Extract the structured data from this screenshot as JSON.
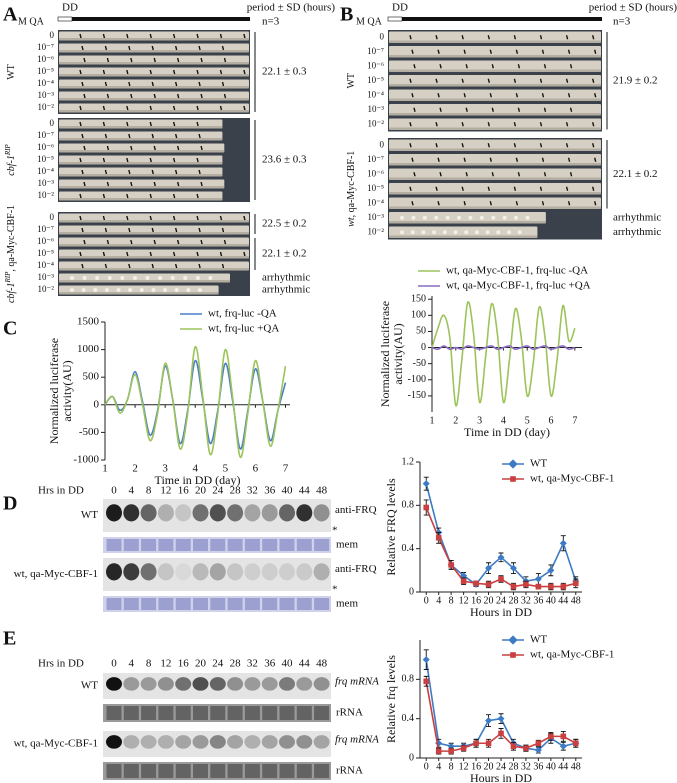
{
  "panel_a": {
    "label": "A",
    "header": {
      "mq": "M QA",
      "dd": "DD",
      "period": "period ± SD (hours)",
      "n": "n=3"
    },
    "groups": [
      {
        "strain": {
          "text": "WT"
        },
        "rows": [
          "0",
          "10⁻⁷",
          "10⁻⁶",
          "10⁻⁵",
          "10⁻⁴",
          "10⁻³",
          "10⁻²"
        ],
        "periods": [
          "22.1 ± 0.3"
        ]
      },
      {
        "strain": {
          "text": "cbf-1",
          "sup": "RIP"
        },
        "rows": [
          "0",
          "10⁻⁷",
          "10⁻⁶",
          "10⁻⁵",
          "10⁻⁴",
          "10⁻³",
          "10⁻²"
        ],
        "periods": [
          "23.6 ± 0.3"
        ]
      },
      {
        "strain": {
          "text": "cbf-1",
          "sup": "RIP",
          "rest": ", qa-Myc-CBF-1"
        },
        "rows": [
          "0",
          "10⁻⁷",
          "10⁻⁶",
          "10⁻⁵",
          "10⁻⁴",
          "10⁻³",
          "10⁻²"
        ],
        "periods": [
          "22.5 ± 0.2",
          "22.1 ± 0.2",
          "arrhythmic",
          "arrhythmic"
        ]
      }
    ]
  },
  "panel_b": {
    "label": "B",
    "header": {
      "mq": "M QA",
      "dd": "DD",
      "period": "period ± SD (hours)",
      "n": "n=3"
    },
    "groups": [
      {
        "strain": {
          "text": "WT"
        },
        "rows": [
          "0",
          "10⁻⁷",
          "10⁻⁶",
          "10⁻⁵",
          "10⁻⁴",
          "10⁻³",
          "10⁻²"
        ],
        "periods": [
          "21.9 ± 0.2"
        ]
      },
      {
        "strain": {
          "text": "wt",
          "rest": ", qa-Myc-CBF-1"
        },
        "rows": [
          "0",
          "10⁻⁷",
          "10⁻⁶",
          "10⁻⁵",
          "10⁻⁴",
          "10⁻³",
          "10⁻²"
        ],
        "periods": [
          "22.1 ± 0.2",
          "arrhythmic",
          "arrhythmic"
        ]
      }
    ]
  },
  "panel_c": {
    "label": "C"
  },
  "panel_d": {
    "label": "D",
    "hrs": "Hrs in DD",
    "times": [
      0,
      4,
      8,
      12,
      16,
      20,
      24,
      28,
      32,
      36,
      40,
      44,
      48
    ],
    "blots": [
      {
        "strain": "WT",
        "band": "anti-FRQ",
        "star": "*",
        "mem": "mem"
      },
      {
        "strain": "wt, qa-Myc-CBF-1",
        "band": "anti-FRQ",
        "star": "*",
        "mem": "mem"
      }
    ]
  },
  "panel_e": {
    "label": "E",
    "hrs": "Hrs in DD",
    "times": [
      0,
      4,
      8,
      12,
      16,
      20,
      24,
      28,
      32,
      36,
      40,
      44,
      48
    ],
    "blots": [
      {
        "strain": "WT",
        "band": "frq mRNA",
        "mem": "rRNA"
      },
      {
        "strain": "wt, qa-Myc-CBF-1",
        "band": "frq mRNA",
        "mem": "rRNA"
      }
    ]
  },
  "chart_data": [
    {
      "type": "line",
      "xlabel": "Time in DD (day)",
      "ylabel": [
        "Normalized luciferase",
        "activity(AU)"
      ],
      "x": [
        1,
        1.25,
        1.5,
        1.75,
        2,
        2.25,
        2.5,
        2.75,
        3,
        3.25,
        3.5,
        3.75,
        4,
        4.25,
        4.5,
        4.75,
        5,
        5.25,
        5.5,
        5.75,
        6,
        6.25,
        6.5,
        6.75,
        7
      ],
      "xlim": [
        1,
        7.15
      ],
      "xticks": [
        1,
        2,
        3,
        4,
        5,
        6,
        7
      ],
      "ylim": [
        -1000,
        1500
      ],
      "yticks": [
        -1000,
        -500,
        0,
        500,
        1000,
        1500
      ],
      "series": [
        {
          "name": "wt, frq-luc -QA",
          "color": "#4a7ec9",
          "values": [
            0,
            150,
            -100,
            100,
            600,
            50,
            -550,
            -100,
            700,
            100,
            -700,
            -100,
            800,
            100,
            -700,
            -100,
            750,
            50,
            -800,
            -100,
            650,
            50,
            -650,
            -100,
            400
          ]
        },
        {
          "name": "wt, frq-luc +QA",
          "color": "#9cc45a",
          "values": [
            0,
            150,
            -150,
            100,
            550,
            0,
            -650,
            -150,
            750,
            100,
            -800,
            -150,
            1050,
            150,
            -900,
            -150,
            1000,
            100,
            -950,
            -150,
            800,
            50,
            -750,
            -100,
            700
          ]
        }
      ]
    },
    {
      "type": "line",
      "xlabel": "Time in DD (day)",
      "ylabel": [
        "Normalized luciferase",
        "activity(AU)"
      ],
      "x": [
        1,
        1.25,
        1.5,
        1.75,
        2,
        2.25,
        2.5,
        2.75,
        3,
        3.25,
        3.5,
        3.75,
        4,
        4.25,
        4.5,
        4.75,
        5,
        5.25,
        5.5,
        5.75,
        6,
        6.25,
        6.5,
        6.75,
        7
      ],
      "xlim": [
        1,
        7.3
      ],
      "xticks": [
        1,
        2,
        3,
        4,
        5,
        6,
        7
      ],
      "ylim": [
        -200,
        160
      ],
      "yticks": [
        -150,
        -100,
        -50,
        0,
        50,
        100,
        150
      ],
      "series": [
        {
          "name": "wt, qa-Myc-CBF-1, frq-luc -QA",
          "color": "#9cc45a",
          "values": [
            0,
            60,
            100,
            30,
            -180,
            -40,
            140,
            40,
            -170,
            -30,
            135,
            40,
            -170,
            -40,
            120,
            30,
            -150,
            -50,
            125,
            30,
            -150,
            -40,
            130,
            20,
            60
          ]
        },
        {
          "name": "wt, qa-Myc-CBF-1, frq-luc +QA",
          "color": "#8a6cc0",
          "values": [
            0,
            -5,
            5,
            -5,
            0,
            -5,
            5,
            0,
            -5,
            0,
            5,
            -5,
            0,
            5,
            -5,
            0,
            5,
            -5,
            0,
            5,
            -5,
            0,
            5,
            -5,
            0
          ]
        }
      ]
    },
    {
      "type": "line",
      "xlabel": "Hours in DD",
      "ylabel": [
        "Relative FRQ levels"
      ],
      "x": [
        0,
        4,
        8,
        12,
        16,
        20,
        24,
        28,
        32,
        36,
        40,
        44,
        48
      ],
      "xlim": [
        -2,
        50
      ],
      "xticks": [
        0,
        4,
        8,
        12,
        16,
        20,
        24,
        28,
        32,
        36,
        40,
        44,
        48
      ],
      "ylim": [
        0,
        1.2
      ],
      "yticks": [
        0,
        0.4,
        0.8,
        1.2
      ],
      "series": [
        {
          "name": "WT",
          "color": "#3d7bc4",
          "marker": "diamond",
          "values": [
            1.0,
            0.55,
            0.25,
            0.15,
            0.07,
            0.22,
            0.32,
            0.22,
            0.1,
            0.12,
            0.2,
            0.45,
            0.1
          ],
          "errors": [
            0.06,
            0.04,
            0.04,
            0.03,
            0.02,
            0.05,
            0.04,
            0.05,
            0.04,
            0.05,
            0.05,
            0.07,
            0.04
          ]
        },
        {
          "name": "wt, qa-Myc-CBF-1",
          "color": "#c94040",
          "marker": "square",
          "values": [
            0.78,
            0.5,
            0.25,
            0.1,
            0.08,
            0.07,
            0.12,
            0.05,
            0.07,
            0.05,
            0.05,
            0.05,
            0.08
          ],
          "errors": [
            0.07,
            0.05,
            0.04,
            0.03,
            0.02,
            0.03,
            0.03,
            0.03,
            0.03,
            0.02,
            0.03,
            0.03,
            0.04
          ]
        }
      ]
    },
    {
      "type": "line",
      "xlabel": "Hours in DD",
      "ylabel": [
        "Relative frq levels"
      ],
      "x": [
        0,
        4,
        8,
        12,
        16,
        20,
        24,
        28,
        32,
        36,
        40,
        44,
        48
      ],
      "xlim": [
        -2,
        50
      ],
      "xticks": [
        0,
        4,
        8,
        12,
        16,
        20,
        24,
        28,
        32,
        36,
        40,
        44,
        48
      ],
      "ylim": [
        0,
        1.2
      ],
      "yticks": [
        0,
        0.4,
        0.8
      ],
      "series": [
        {
          "name": "WT",
          "color": "#3d7bc4",
          "marker": "diamond",
          "values": [
            1.0,
            0.15,
            0.12,
            0.12,
            0.15,
            0.38,
            0.4,
            0.15,
            0.1,
            0.08,
            0.2,
            0.12,
            0.15
          ],
          "errors": [
            0.1,
            0.04,
            0.03,
            0.03,
            0.04,
            0.06,
            0.05,
            0.04,
            0.03,
            0.03,
            0.05,
            0.04,
            0.04
          ]
        },
        {
          "name": "wt, qa-Myc-CBF-1",
          "color": "#c94040",
          "marker": "square",
          "values": [
            0.78,
            0.07,
            0.07,
            0.1,
            0.15,
            0.15,
            0.25,
            0.12,
            0.1,
            0.15,
            0.22,
            0.22,
            0.15
          ],
          "errors": [
            0.05,
            0.03,
            0.03,
            0.03,
            0.04,
            0.04,
            0.05,
            0.04,
            0.03,
            0.03,
            0.04,
            0.05,
            0.04
          ]
        }
      ]
    }
  ]
}
